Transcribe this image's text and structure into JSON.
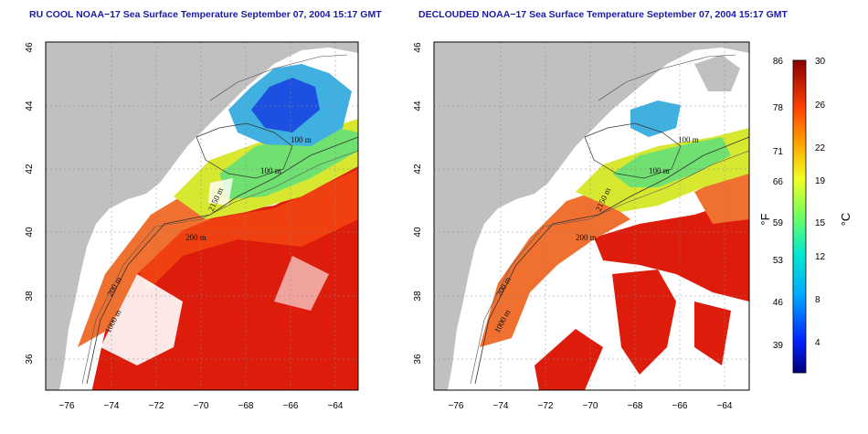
{
  "panels": [
    {
      "title": "RU COOL NOAA−17 Sea Surface Temperature September 07, 2004 15:17 GMT"
    },
    {
      "title": "DECLOUDED NOAA−17 Sea Surface Temperature September 07, 2004 15:17 GMT"
    }
  ],
  "axes": {
    "lat_ticks": [
      "46",
      "44",
      "42",
      "40",
      "38",
      "36"
    ],
    "lon_ticks": [
      "−76",
      "−74",
      "−72",
      "−70",
      "−68",
      "−66",
      "−64"
    ]
  },
  "contours": {
    "labels_left": [
      "100 m",
      "100 m",
      "2150 m",
      "200 m",
      "200 m",
      "1000 m"
    ],
    "labels_right": [
      "100 m",
      "100 m",
      "2150 m",
      "200 m",
      "200 m",
      "1000 m"
    ]
  },
  "colorbar": {
    "fahrenheit": [
      "86",
      "78",
      "71",
      "66",
      "59",
      "53",
      "46",
      "39"
    ],
    "celsius": [
      "30",
      "26",
      "22",
      "19",
      "15",
      "12",
      "8",
      "4"
    ],
    "unit_f": "°F",
    "unit_c": "°C"
  },
  "colors": {
    "land": "#c0c0c0",
    "cloud": "#ffffff",
    "title": "#1a1aa8"
  }
}
